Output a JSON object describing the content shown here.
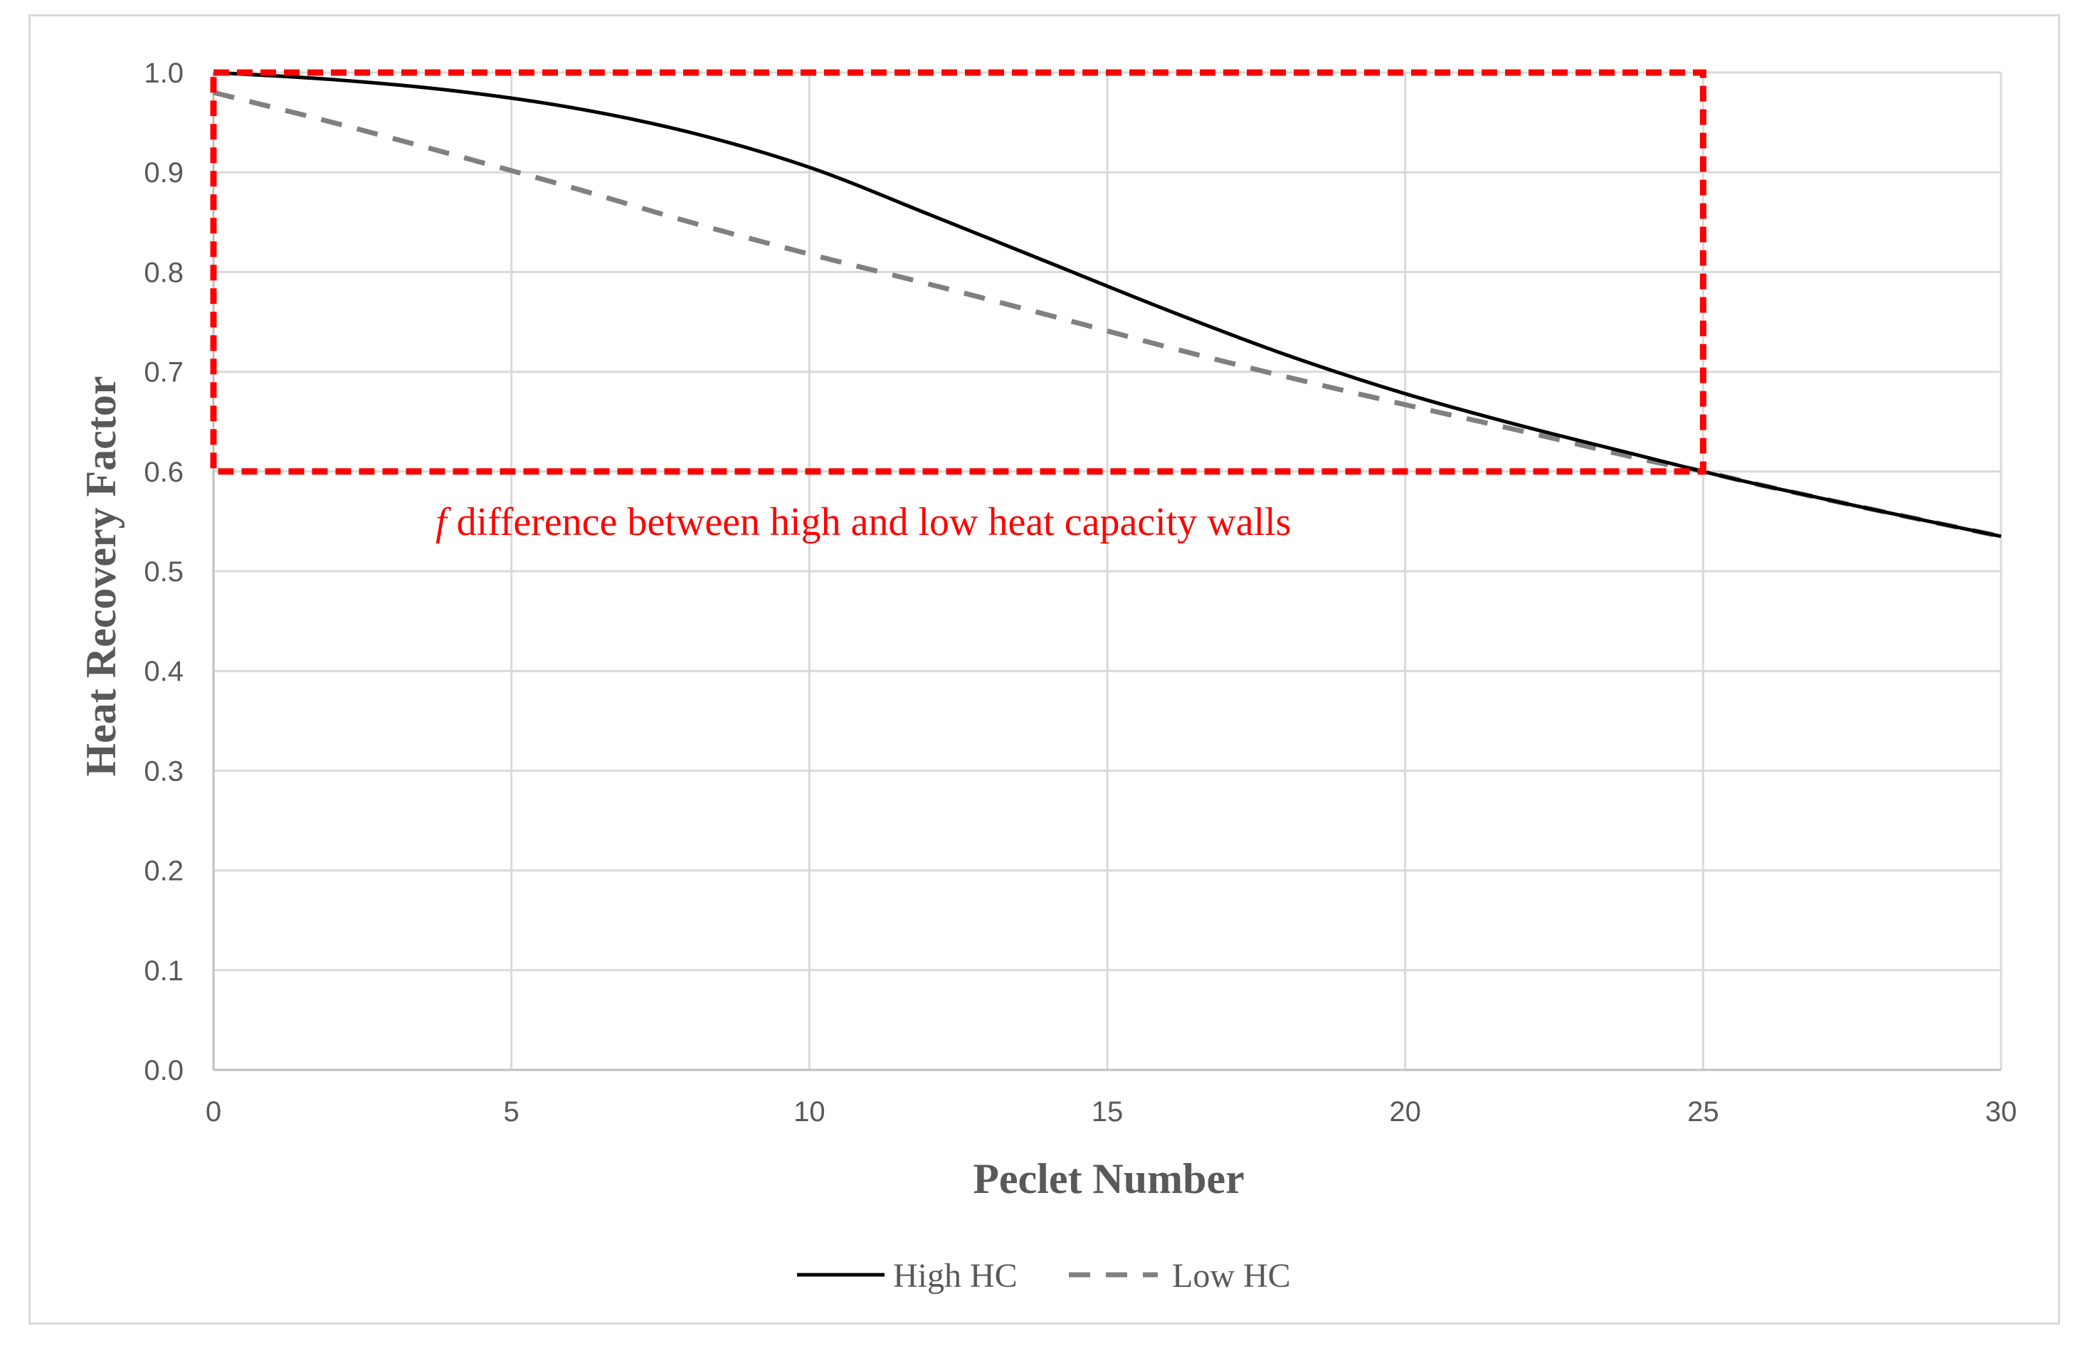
{
  "chart_data": {
    "type": "line",
    "title": "",
    "xlabel": "Peclet Number",
    "ylabel": "Heat Recovery Factor",
    "xlim": [
      0,
      30
    ],
    "ylim": [
      0,
      1.0
    ],
    "x_ticks": [
      "0",
      "5",
      "10",
      "15",
      "20",
      "25",
      "30"
    ],
    "y_ticks": [
      "0.0",
      "0.1",
      "0.2",
      "0.3",
      "0.4",
      "0.5",
      "0.6",
      "0.7",
      "0.8",
      "0.9",
      "1.0"
    ],
    "grid": true,
    "legend_position": "bottom-center",
    "series": [
      {
        "name": "High HC",
        "color": "#000000",
        "style": "solid",
        "x": [
          0,
          2,
          4,
          6,
          8,
          10,
          12,
          14,
          16,
          18,
          20,
          22,
          24,
          25,
          26,
          28,
          30
        ],
        "y": [
          1.0,
          0.993,
          0.982,
          0.965,
          0.94,
          0.905,
          0.858,
          0.81,
          0.762,
          0.717,
          0.678,
          0.645,
          0.615,
          0.6,
          0.586,
          0.56,
          0.535
        ]
      },
      {
        "name": "Low HC",
        "color": "#808080",
        "style": "dashed",
        "x": [
          0,
          2,
          4,
          6,
          8,
          10,
          12,
          14,
          16,
          18,
          20,
          22,
          24,
          25,
          26,
          28,
          30
        ],
        "y": [
          0.98,
          0.95,
          0.918,
          0.885,
          0.85,
          0.818,
          0.788,
          0.757,
          0.725,
          0.695,
          0.667,
          0.64,
          0.612,
          0.6,
          0.586,
          0.56,
          0.535
        ]
      }
    ],
    "highlight_box": {
      "x_range": [
        0,
        25
      ],
      "y_range": [
        0.6,
        1.0
      ],
      "color": "#ff0000",
      "style": "dashed"
    },
    "annotation": {
      "italic_prefix": "f",
      "text": " difference between high and low heat capacity walls",
      "color": "#ff0000"
    }
  }
}
